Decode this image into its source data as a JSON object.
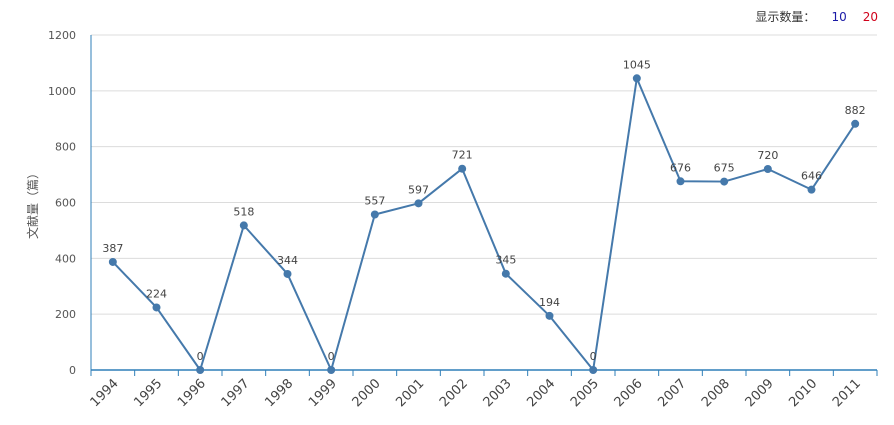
{
  "display_count": {
    "label": "显示数量：",
    "options": [
      "10",
      "20"
    ],
    "colors": [
      "#1a1aa6",
      "#d0021b"
    ]
  },
  "chart_data": {
    "type": "line",
    "ylabel": "文献量（篇）",
    "x": [
      "1994",
      "1995",
      "1996",
      "1997",
      "1998",
      "1999",
      "2000",
      "2001",
      "2002",
      "2003",
      "2004",
      "2005",
      "2006",
      "2007",
      "2008",
      "2009",
      "2010",
      "2011"
    ],
    "series": [
      {
        "values": [
          387,
          224,
          0,
          518,
          344,
          0,
          557,
          597,
          721,
          345,
          194,
          0,
          1045,
          676,
          675,
          720,
          646,
          882
        ]
      }
    ],
    "ylim": [
      0,
      1200
    ],
    "yticks": [
      "0",
      "200",
      "400",
      "600",
      "800",
      "1000",
      "1200"
    ],
    "grid": true,
    "line_color": "#4579ab",
    "axis_color": "#2f7fb8"
  }
}
